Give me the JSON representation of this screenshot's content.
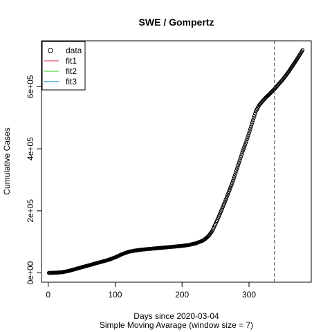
{
  "chart_data": {
    "type": "scatter",
    "title": "SWE / Gompertz",
    "xlabel": "Days since 2020-03-04",
    "xlabel_sub": "Simple Moving Avarage (window size = 7)",
    "ylabel": "Cumulative Cases",
    "xlim": [
      -10,
      393
    ],
    "ylim": [
      -30000,
      748000
    ],
    "x_ticks": [
      {
        "value": 0,
        "label": "0"
      },
      {
        "value": 100,
        "label": "100"
      },
      {
        "value": 200,
        "label": "200"
      },
      {
        "value": 300,
        "label": "300"
      }
    ],
    "y_ticks": [
      {
        "value": 0,
        "label": "0e+00"
      },
      {
        "value": 200000,
        "label": "2e+05"
      },
      {
        "value": 400000,
        "label": "4e+05"
      },
      {
        "value": 600000,
        "label": "6e+05"
      }
    ],
    "vline_x": 338,
    "grid": false,
    "legend_position": "top-left",
    "legend": [
      {
        "label": "data",
        "kind": "point",
        "color": "#000000"
      },
      {
        "label": "fit1",
        "kind": "line",
        "color": "#DF536B"
      },
      {
        "label": "fit2",
        "kind": "line",
        "color": "#61D04F"
      },
      {
        "label": "fit3",
        "kind": "line",
        "color": "#2297E6"
      }
    ],
    "series": [
      {
        "name": "data",
        "x": [
          1,
          10,
          20,
          30,
          40,
          50,
          60,
          70,
          80,
          90,
          100,
          110,
          120,
          130,
          140,
          150,
          160,
          170,
          180,
          190,
          200,
          210,
          220,
          230,
          235,
          240,
          245,
          250,
          255,
          260,
          265,
          270,
          275,
          280,
          285,
          290,
          295,
          300,
          305,
          310,
          315,
          320,
          325,
          330,
          335,
          340,
          345,
          350,
          355,
          360,
          365,
          370,
          375,
          380
        ],
        "y": [
          0,
          500,
          2000,
          6000,
          12000,
          18000,
          24000,
          30000,
          36000,
          42000,
          50000,
          60000,
          68000,
          72000,
          75000,
          77000,
          79000,
          81000,
          83000,
          85000,
          87000,
          90000,
          95000,
          103000,
          110000,
          120000,
          135000,
          158000,
          182000,
          208000,
          234000,
          262000,
          290000,
          322000,
          355000,
          388000,
          418000,
          450000,
          485000,
          520000,
          540000,
          553000,
          565000,
          575000,
          586000,
          597000,
          610000,
          622000,
          636000,
          651000,
          667000,
          683000,
          700000,
          718000
        ]
      }
    ]
  }
}
